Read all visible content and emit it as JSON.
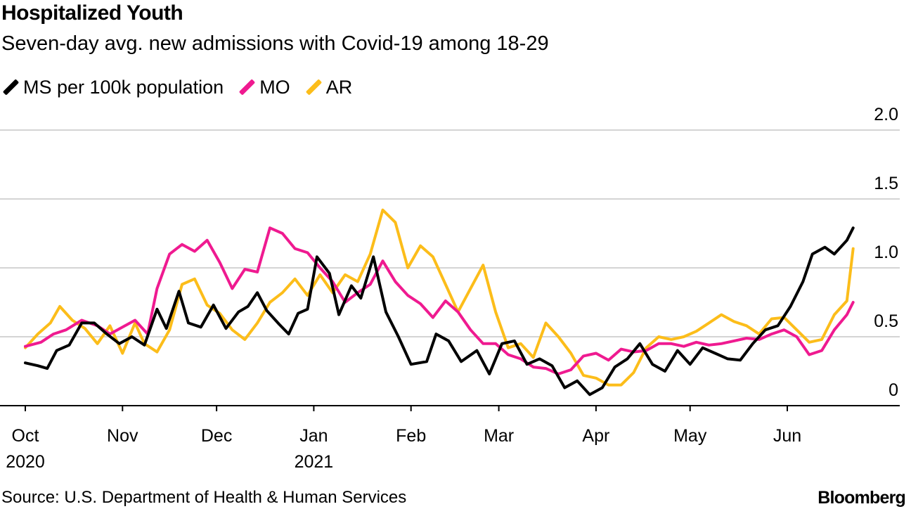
{
  "title": "Hospitalized Youth",
  "subtitle": "Seven-day avg. new admissions with Covid-19 among 18-29",
  "source": "Source: U.S. Department of Health & Human Services",
  "brand": "Bloomberg",
  "chart_data": {
    "type": "line",
    "title": "Hospitalized Youth",
    "subtitle": "Seven-day avg. new admissions with Covid-19 among 18-29",
    "ylim": [
      0,
      2.0
    ],
    "yticks": [
      0,
      0.5,
      1.0,
      1.5,
      2.0
    ],
    "ytick_labels": [
      "0",
      "0.5",
      "1.0",
      "1.5",
      "2.0"
    ],
    "xlim": [
      "2020-10-01",
      "2021-06-30"
    ],
    "xticks": [
      {
        "date": "2020-10-01",
        "label": "Oct",
        "sublabel": "2020"
      },
      {
        "date": "2020-11-01",
        "label": "Nov",
        "sublabel": ""
      },
      {
        "date": "2020-12-01",
        "label": "Dec",
        "sublabel": ""
      },
      {
        "date": "2021-01-01",
        "label": "Jan",
        "sublabel": "2021"
      },
      {
        "date": "2021-02-01",
        "label": "Feb",
        "sublabel": ""
      },
      {
        "date": "2021-03-01",
        "label": "Mar",
        "sublabel": ""
      },
      {
        "date": "2021-04-01",
        "label": "Apr",
        "sublabel": ""
      },
      {
        "date": "2021-05-01",
        "label": "May",
        "sublabel": ""
      },
      {
        "date": "2021-06-01",
        "label": "Jun",
        "sublabel": ""
      }
    ],
    "grid": true,
    "legend_position": "top-left",
    "series": [
      {
        "name": "MS per 100k population",
        "color": "#000000",
        "points": [
          [
            "2020-10-01",
            0.31
          ],
          [
            "2020-10-05",
            0.29
          ],
          [
            "2020-10-08",
            0.27
          ],
          [
            "2020-10-11",
            0.4
          ],
          [
            "2020-10-15",
            0.44
          ],
          [
            "2020-10-19",
            0.6
          ],
          [
            "2020-10-23",
            0.6
          ],
          [
            "2020-10-27",
            0.52
          ],
          [
            "2020-10-31",
            0.45
          ],
          [
            "2020-11-04",
            0.5
          ],
          [
            "2020-11-08",
            0.44
          ],
          [
            "2020-11-12",
            0.7
          ],
          [
            "2020-11-15",
            0.56
          ],
          [
            "2020-11-19",
            0.83
          ],
          [
            "2020-11-22",
            0.6
          ],
          [
            "2020-11-26",
            0.57
          ],
          [
            "2020-11-30",
            0.73
          ],
          [
            "2020-12-04",
            0.56
          ],
          [
            "2020-12-08",
            0.68
          ],
          [
            "2020-12-11",
            0.72
          ],
          [
            "2020-12-14",
            0.82
          ],
          [
            "2020-12-17",
            0.69
          ],
          [
            "2020-12-21",
            0.59
          ],
          [
            "2020-12-24",
            0.52
          ],
          [
            "2020-12-27",
            0.67
          ],
          [
            "2020-12-30",
            0.7
          ],
          [
            "2021-01-02",
            1.08
          ],
          [
            "2021-01-06",
            0.96
          ],
          [
            "2021-01-09",
            0.66
          ],
          [
            "2021-01-13",
            0.87
          ],
          [
            "2021-01-16",
            0.78
          ],
          [
            "2021-01-20",
            1.08
          ],
          [
            "2021-01-24",
            0.68
          ],
          [
            "2021-01-28",
            0.5
          ],
          [
            "2021-02-01",
            0.3
          ],
          [
            "2021-02-06",
            0.32
          ],
          [
            "2021-02-09",
            0.52
          ],
          [
            "2021-02-13",
            0.47
          ],
          [
            "2021-02-17",
            0.32
          ],
          [
            "2021-02-22",
            0.4
          ],
          [
            "2021-02-26",
            0.23
          ],
          [
            "2021-03-02",
            0.45
          ],
          [
            "2021-03-06",
            0.47
          ],
          [
            "2021-03-10",
            0.3
          ],
          [
            "2021-03-14",
            0.34
          ],
          [
            "2021-03-18",
            0.29
          ],
          [
            "2021-03-22",
            0.13
          ],
          [
            "2021-03-26",
            0.18
          ],
          [
            "2021-03-30",
            0.08
          ],
          [
            "2021-04-03",
            0.13
          ],
          [
            "2021-04-07",
            0.28
          ],
          [
            "2021-04-11",
            0.34
          ],
          [
            "2021-04-15",
            0.45
          ],
          [
            "2021-04-19",
            0.3
          ],
          [
            "2021-04-23",
            0.25
          ],
          [
            "2021-04-27",
            0.4
          ],
          [
            "2021-05-01",
            0.3
          ],
          [
            "2021-05-05",
            0.42
          ],
          [
            "2021-05-09",
            0.38
          ],
          [
            "2021-05-13",
            0.34
          ],
          [
            "2021-05-17",
            0.33
          ],
          [
            "2021-05-21",
            0.45
          ],
          [
            "2021-05-25",
            0.55
          ],
          [
            "2021-05-29",
            0.58
          ],
          [
            "2021-06-02",
            0.72
          ],
          [
            "2021-06-06",
            0.9
          ],
          [
            "2021-06-09",
            1.1
          ],
          [
            "2021-06-13",
            1.15
          ],
          [
            "2021-06-16",
            1.1
          ],
          [
            "2021-06-20",
            1.2
          ],
          [
            "2021-06-22",
            1.29
          ]
        ]
      },
      {
        "name": "MO",
        "color": "#ef1a90",
        "points": [
          [
            "2020-10-01",
            0.43
          ],
          [
            "2020-10-06",
            0.46
          ],
          [
            "2020-10-10",
            0.52
          ],
          [
            "2020-10-14",
            0.55
          ],
          [
            "2020-10-19",
            0.62
          ],
          [
            "2020-10-24",
            0.58
          ],
          [
            "2020-10-28",
            0.52
          ],
          [
            "2020-11-01",
            0.57
          ],
          [
            "2020-11-05",
            0.62
          ],
          [
            "2020-11-09",
            0.52
          ],
          [
            "2020-11-12",
            0.85
          ],
          [
            "2020-11-16",
            1.1
          ],
          [
            "2020-11-20",
            1.17
          ],
          [
            "2020-11-24",
            1.12
          ],
          [
            "2020-11-28",
            1.2
          ],
          [
            "2020-12-02",
            1.04
          ],
          [
            "2020-12-06",
            0.85
          ],
          [
            "2020-12-10",
            0.99
          ],
          [
            "2020-12-14",
            0.97
          ],
          [
            "2020-12-18",
            1.29
          ],
          [
            "2020-12-22",
            1.25
          ],
          [
            "2020-12-26",
            1.14
          ],
          [
            "2020-12-30",
            1.11
          ],
          [
            "2021-01-03",
            1.0
          ],
          [
            "2021-01-07",
            0.9
          ],
          [
            "2021-01-11",
            0.75
          ],
          [
            "2021-01-15",
            0.82
          ],
          [
            "2021-01-19",
            0.88
          ],
          [
            "2021-01-23",
            1.05
          ],
          [
            "2021-01-27",
            0.9
          ],
          [
            "2021-01-31",
            0.8
          ],
          [
            "2021-02-04",
            0.74
          ],
          [
            "2021-02-08",
            0.64
          ],
          [
            "2021-02-12",
            0.76
          ],
          [
            "2021-02-16",
            0.68
          ],
          [
            "2021-02-20",
            0.55
          ],
          [
            "2021-02-24",
            0.45
          ],
          [
            "2021-02-28",
            0.45
          ],
          [
            "2021-03-04",
            0.37
          ],
          [
            "2021-03-08",
            0.34
          ],
          [
            "2021-03-12",
            0.28
          ],
          [
            "2021-03-16",
            0.27
          ],
          [
            "2021-03-20",
            0.23
          ],
          [
            "2021-03-24",
            0.26
          ],
          [
            "2021-03-28",
            0.36
          ],
          [
            "2021-04-01",
            0.38
          ],
          [
            "2021-04-05",
            0.33
          ],
          [
            "2021-04-09",
            0.41
          ],
          [
            "2021-04-13",
            0.39
          ],
          [
            "2021-04-17",
            0.4
          ],
          [
            "2021-04-21",
            0.45
          ],
          [
            "2021-04-25",
            0.45
          ],
          [
            "2021-04-29",
            0.43
          ],
          [
            "2021-05-03",
            0.46
          ],
          [
            "2021-05-07",
            0.44
          ],
          [
            "2021-05-11",
            0.45
          ],
          [
            "2021-05-15",
            0.47
          ],
          [
            "2021-05-19",
            0.49
          ],
          [
            "2021-05-23",
            0.48
          ],
          [
            "2021-05-27",
            0.52
          ],
          [
            "2021-05-31",
            0.55
          ],
          [
            "2021-06-04",
            0.5
          ],
          [
            "2021-06-08",
            0.37
          ],
          [
            "2021-06-12",
            0.4
          ],
          [
            "2021-06-16",
            0.55
          ],
          [
            "2021-06-20",
            0.66
          ],
          [
            "2021-06-22",
            0.75
          ]
        ]
      },
      {
        "name": "AR",
        "color": "#fcbd1a",
        "points": [
          [
            "2020-10-01",
            0.42
          ],
          [
            "2020-10-05",
            0.52
          ],
          [
            "2020-10-09",
            0.6
          ],
          [
            "2020-10-12",
            0.72
          ],
          [
            "2020-10-16",
            0.62
          ],
          [
            "2020-10-20",
            0.56
          ],
          [
            "2020-10-24",
            0.45
          ],
          [
            "2020-10-28",
            0.58
          ],
          [
            "2020-11-01",
            0.38
          ],
          [
            "2020-11-05",
            0.6
          ],
          [
            "2020-11-08",
            0.45
          ],
          [
            "2020-11-12",
            0.39
          ],
          [
            "2020-11-16",
            0.55
          ],
          [
            "2020-11-20",
            0.88
          ],
          [
            "2020-11-24",
            0.92
          ],
          [
            "2020-11-28",
            0.73
          ],
          [
            "2020-12-02",
            0.67
          ],
          [
            "2020-12-06",
            0.55
          ],
          [
            "2020-12-10",
            0.48
          ],
          [
            "2020-12-14",
            0.6
          ],
          [
            "2020-12-18",
            0.75
          ],
          [
            "2020-12-22",
            0.82
          ],
          [
            "2020-12-26",
            0.92
          ],
          [
            "2020-12-30",
            0.8
          ],
          [
            "2021-01-03",
            0.95
          ],
          [
            "2021-01-07",
            0.82
          ],
          [
            "2021-01-11",
            0.95
          ],
          [
            "2021-01-15",
            0.9
          ],
          [
            "2021-01-19",
            1.1
          ],
          [
            "2021-01-23",
            1.42
          ],
          [
            "2021-01-27",
            1.33
          ],
          [
            "2021-01-31",
            1.0
          ],
          [
            "2021-02-04",
            1.16
          ],
          [
            "2021-02-08",
            1.08
          ],
          [
            "2021-02-12",
            0.88
          ],
          [
            "2021-02-16",
            0.68
          ],
          [
            "2021-02-20",
            0.85
          ],
          [
            "2021-02-24",
            1.02
          ],
          [
            "2021-02-28",
            0.68
          ],
          [
            "2021-03-04",
            0.42
          ],
          [
            "2021-03-08",
            0.45
          ],
          [
            "2021-03-12",
            0.35
          ],
          [
            "2021-03-16",
            0.6
          ],
          [
            "2021-03-20",
            0.5
          ],
          [
            "2021-03-24",
            0.38
          ],
          [
            "2021-03-28",
            0.22
          ],
          [
            "2021-04-01",
            0.2
          ],
          [
            "2021-04-05",
            0.15
          ],
          [
            "2021-04-09",
            0.15
          ],
          [
            "2021-04-13",
            0.24
          ],
          [
            "2021-04-17",
            0.42
          ],
          [
            "2021-04-21",
            0.5
          ],
          [
            "2021-04-25",
            0.48
          ],
          [
            "2021-04-29",
            0.5
          ],
          [
            "2021-05-03",
            0.54
          ],
          [
            "2021-05-07",
            0.6
          ],
          [
            "2021-05-11",
            0.66
          ],
          [
            "2021-05-15",
            0.61
          ],
          [
            "2021-05-19",
            0.58
          ],
          [
            "2021-05-23",
            0.52
          ],
          [
            "2021-05-27",
            0.63
          ],
          [
            "2021-05-31",
            0.64
          ],
          [
            "2021-06-04",
            0.55
          ],
          [
            "2021-06-08",
            0.46
          ],
          [
            "2021-06-12",
            0.48
          ],
          [
            "2021-06-16",
            0.66
          ],
          [
            "2021-06-20",
            0.76
          ],
          [
            "2021-06-22",
            1.14
          ]
        ]
      }
    ]
  }
}
